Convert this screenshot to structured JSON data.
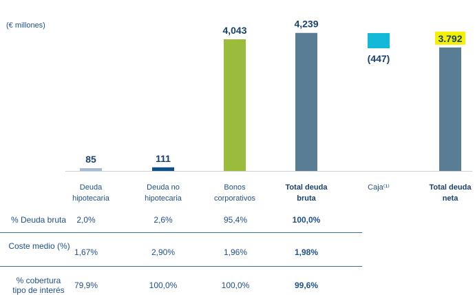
{
  "unit_label": "(€ millones)",
  "chart_data": {
    "type": "bar",
    "categories": [
      [
        "Deuda",
        "hipotecaria"
      ],
      [
        "Deuda no",
        "hipotecaria"
      ],
      [
        "Bonos",
        "corporativos"
      ],
      [
        "Total deuda",
        "bruta"
      ],
      [
        "Caja⁽¹⁾"
      ],
      [
        "Total deuda",
        "neta"
      ]
    ],
    "values": [
      85,
      111,
      4043,
      4239,
      -447,
      3792
    ],
    "value_labels": [
      "85",
      "111",
      "4,043",
      "4,239",
      "(447)",
      "3.792"
    ],
    "bold_categories": [
      false,
      false,
      false,
      true,
      false,
      true
    ],
    "colors": [
      "#a7bcd0",
      "#0f4f8a",
      "#9bbb3a",
      "#5a7d96",
      "#14b8d8",
      "#5a7d96"
    ],
    "highlight_color": "#f4f000",
    "highlight_index": 5,
    "ylim": [
      0,
      4500
    ]
  },
  "table": {
    "rows": [
      {
        "label": [
          "% Deuda bruta"
        ],
        "values": [
          "2,0%",
          "2,6%",
          "95,4%",
          "100,0%"
        ]
      },
      {
        "label": [
          "Coste medio (%)"
        ],
        "values": [
          "1,67%",
          "2,90%",
          "1,96%",
          "1,98%"
        ]
      },
      {
        "label": [
          "% cobertura",
          "tipo de interés"
        ],
        "values": [
          "79,9%",
          "100,0%",
          "100,0%",
          "99,6%"
        ]
      }
    ]
  }
}
